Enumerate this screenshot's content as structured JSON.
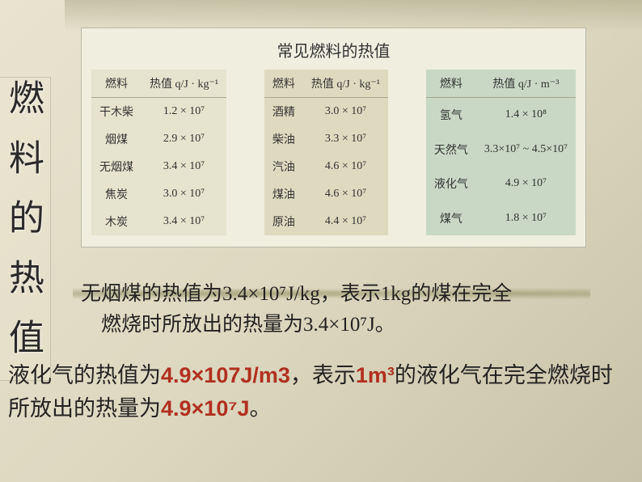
{
  "sidebar": {
    "label": "燃料的热值"
  },
  "table": {
    "title": "常见燃料的热值",
    "group1": {
      "header_fuel": "燃料",
      "header_value": "热值 q/J · kg⁻¹",
      "rows": [
        {
          "name": "干木柴",
          "value": "1.2 × 10⁷"
        },
        {
          "name": "烟煤",
          "value": "2.9 × 10⁷"
        },
        {
          "name": "无烟煤",
          "value": "3.4 × 10⁷"
        },
        {
          "name": "焦炭",
          "value": "3.0 × 10⁷"
        },
        {
          "name": "木炭",
          "value": "3.4 × 10⁷"
        }
      ]
    },
    "group2": {
      "header_fuel": "燃料",
      "header_value": "热值 q/J · kg⁻¹",
      "rows": [
        {
          "name": "酒精",
          "value": "3.0 × 10⁷"
        },
        {
          "name": "柴油",
          "value": "3.3 × 10⁷"
        },
        {
          "name": "汽油",
          "value": "4.6 × 10⁷"
        },
        {
          "name": "煤油",
          "value": "4.6 × 10⁷"
        },
        {
          "name": "原油",
          "value": "4.4 × 10⁷"
        }
      ]
    },
    "group3": {
      "header_fuel": "燃料",
      "header_value": "热值 q/J · m⁻³",
      "rows": [
        {
          "name": "氢气",
          "value": "1.4 × 10⁸"
        },
        {
          "name": "天然气",
          "value": "3.3×10⁷ ~ 4.5×10⁷"
        },
        {
          "name": "液化气",
          "value": "4.9 × 10⁷"
        },
        {
          "name": "煤气",
          "value": "1.8 × 10⁷"
        }
      ]
    },
    "colors": {
      "group1_bg": "#e6e3ce",
      "group2_bg": "#dedac0",
      "group3_bg": "#c8d8c4",
      "container_bg": "#f0eedf",
      "border": "#b8b8a8",
      "text": "#333333"
    }
  },
  "body_text": {
    "para1_line1": "无烟煤的热值为3.4×10⁷J/kg，表示1kg的煤在完全",
    "para1_line2": "燃烧时所放出的热量为3.4×10⁷J。",
    "para2_pre": "液化气的热值为",
    "para2_hl1": "4.9×107J/m3",
    "para2_mid": "，表示",
    "para2_hl2": "1m³",
    "para2_mid2": "的液化气在完全燃烧时所放出的热量为",
    "para2_hl3": "4.9×10⁷J",
    "para2_end": "。"
  },
  "style": {
    "page_bg_colors": [
      "#e8e4d0",
      "#ddd8c0",
      "#c8c2a8"
    ],
    "sidebar_font_size": 44,
    "sidebar_text_color": "#2a2a2a",
    "table_title_font_size": 20,
    "table_cell_font_size": 14,
    "para1_font_size": 25,
    "para1_color": "#222222",
    "para2_font_size": 27,
    "para2_color": "#222222",
    "highlight_color": "#b03020"
  }
}
